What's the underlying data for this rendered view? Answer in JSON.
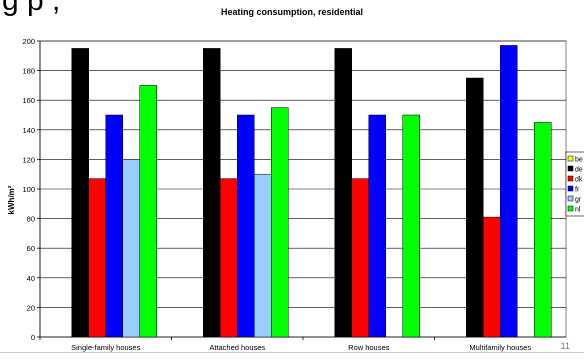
{
  "slide": {
    "title_fragment": "g     p   ,",
    "page_number": "11"
  },
  "chart_data": {
    "type": "bar",
    "title": "Heating consumption, residential",
    "ylabel": "kWh/m²",
    "xlabel": "",
    "ylim": [
      0,
      200
    ],
    "yticks": [
      0,
      20,
      40,
      60,
      80,
      100,
      120,
      140,
      160,
      180,
      200
    ],
    "grid": true,
    "legend_position": "right",
    "categories": [
      "Single-family houses",
      "Attached houses",
      "Row houses",
      "Multifamily houses"
    ],
    "series": [
      {
        "name": "be",
        "color": "#ffff00",
        "values": [
          null,
          null,
          null,
          null
        ]
      },
      {
        "name": "de",
        "color": "#000000",
        "values": [
          195,
          195,
          195,
          175
        ]
      },
      {
        "name": "dk",
        "color": "#ff0000",
        "values": [
          107,
          107,
          107,
          81
        ]
      },
      {
        "name": "fr",
        "color": "#0000ff",
        "values": [
          150,
          150,
          150,
          197
        ]
      },
      {
        "name": "gr",
        "color": "#99ccff",
        "values": [
          120,
          110,
          null,
          null
        ]
      },
      {
        "name": "nl",
        "color": "#00ff00",
        "values": [
          170,
          155,
          150,
          145
        ]
      }
    ]
  }
}
